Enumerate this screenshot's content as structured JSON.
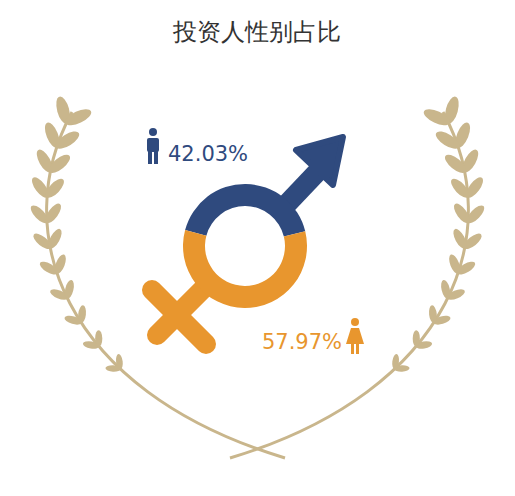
{
  "chart_data": {
    "type": "pie",
    "title": "投资人性别占比",
    "categories": [
      null,
      null
    ],
    "values": [
      42.03,
      57.97
    ],
    "value_labels": [
      "42.03%",
      "57.97%"
    ],
    "colors": [
      "#2f4a7e",
      "#e8962e"
    ],
    "data_labels": true
  }
}
